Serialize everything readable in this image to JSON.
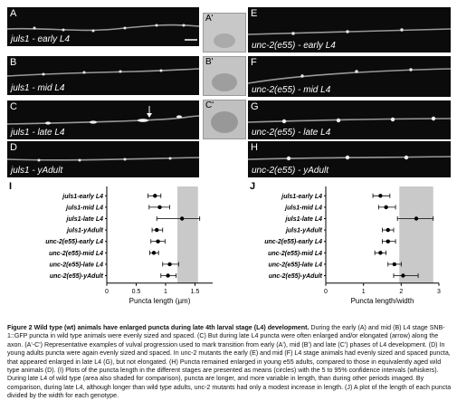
{
  "panels": [
    {
      "letter": "A",
      "caption": "juls1 - early L4"
    },
    {
      "letter": "B",
      "caption": "juls1 - mid L4"
    },
    {
      "letter": "C",
      "caption": "juls1 - late L4"
    },
    {
      "letter": "D",
      "caption": "juls1 - yAdult"
    },
    {
      "letter": "E",
      "caption": "unc-2(e55) - early L4"
    },
    {
      "letter": "F",
      "caption": "unc-2(e55) - mid L4"
    },
    {
      "letter": "G",
      "caption": "unc-2(e55) - late L4"
    },
    {
      "letter": "H",
      "caption": "unc-2(e55) - yAdult"
    }
  ],
  "vulva_panels": [
    {
      "letter": "A'"
    },
    {
      "letter": "B'"
    },
    {
      "letter": "C'"
    }
  ],
  "chart_data": [
    {
      "type": "scatter",
      "panel": "I",
      "xlabel": "Puncta length (µm)",
      "xlim": [
        0,
        1.8
      ],
      "xticks": [
        "0",
        "0.5",
        "1",
        "1.5"
      ],
      "xtick_values": [
        0,
        0.5,
        1,
        1.5
      ],
      "shaded_range": [
        1.2,
        1.55
      ],
      "categories": [
        "juls1-early L4",
        "juls1-mid L4",
        "juls1-late L4",
        "juls1-yAdult",
        "unc-2(e55)-early L4",
        "unc-2(e55)-mid L4",
        "unc-2(e55)-late L4",
        "unc-2(e55)-yAdult"
      ],
      "values": [
        0.82,
        0.9,
        1.28,
        0.85,
        0.87,
        0.8,
        1.07,
        1.04
      ],
      "err_low": [
        0.7,
        0.72,
        0.85,
        0.77,
        0.75,
        0.73,
        0.95,
        0.92
      ],
      "err_high": [
        0.92,
        1.07,
        1.58,
        0.95,
        0.99,
        0.88,
        1.22,
        1.18
      ]
    },
    {
      "type": "scatter",
      "panel": "J",
      "xlabel": "Puncta length/width",
      "xlim": [
        0,
        3
      ],
      "xticks": [
        "0",
        "1",
        "2",
        "3"
      ],
      "xtick_values": [
        0,
        1,
        2,
        3
      ],
      "shaded_range": [
        1.95,
        2.85
      ],
      "categories": [
        "juls1-early L4",
        "juls1-mid L4",
        "juls1-late L4",
        "juls1-yAdult",
        "unc-2(e55)-early L4",
        "unc-2(e55)-mid L4",
        "unc-2(e55)-late L4",
        "unc-2(e55)-yAdult"
      ],
      "values": [
        1.45,
        1.6,
        2.4,
        1.65,
        1.65,
        1.45,
        1.82,
        2.05
      ],
      "err_low": [
        1.25,
        1.4,
        1.9,
        1.5,
        1.5,
        1.3,
        1.65,
        1.8
      ],
      "err_high": [
        1.7,
        1.85,
        2.85,
        1.8,
        1.85,
        1.6,
        2.0,
        2.45
      ]
    }
  ],
  "caption": {
    "title": "Figure 2 Wild type (wt) animals have enlarged puncta during late 4th larval stage (L4) development.",
    "body": "During the early (A) and mid (B) L4 stage SNB-1::GFP puncta in wild type animals were evenly sized and spaced. (C) But during late L4 puncta were often enlarged and/or elongated (arrow) along the axon. (A'-C') Representative examples of vulval progression used to mark transition from early (A'), mid (B') and late (C') phases of L4 development. (D) In young adults puncta were again evenly sized and spaced. In unc-2 mutants the early (E) and mid (F) L4 stage animals had evenly sized and spaced puncta, that appeared enlarged in late L4 (G), but not elongated. (H) Puncta remained enlarged in young e55 adults, compared to those in equivalently aged wild type animals (D). (I) Plots of the puncta length in the different stages are presented as means (circles) with the 5 to 95% confidence intervals (whiskers). During late L4 of wild type (area also shaded for comparison), puncta are longer, and more variable in length, than during other periods imaged. By comparison, during late L4, although longer than wild type adults, unc-2 mutants had only a modest increase in length. (J) A plot of the length of each puncta divided by the width for each genotype."
  }
}
